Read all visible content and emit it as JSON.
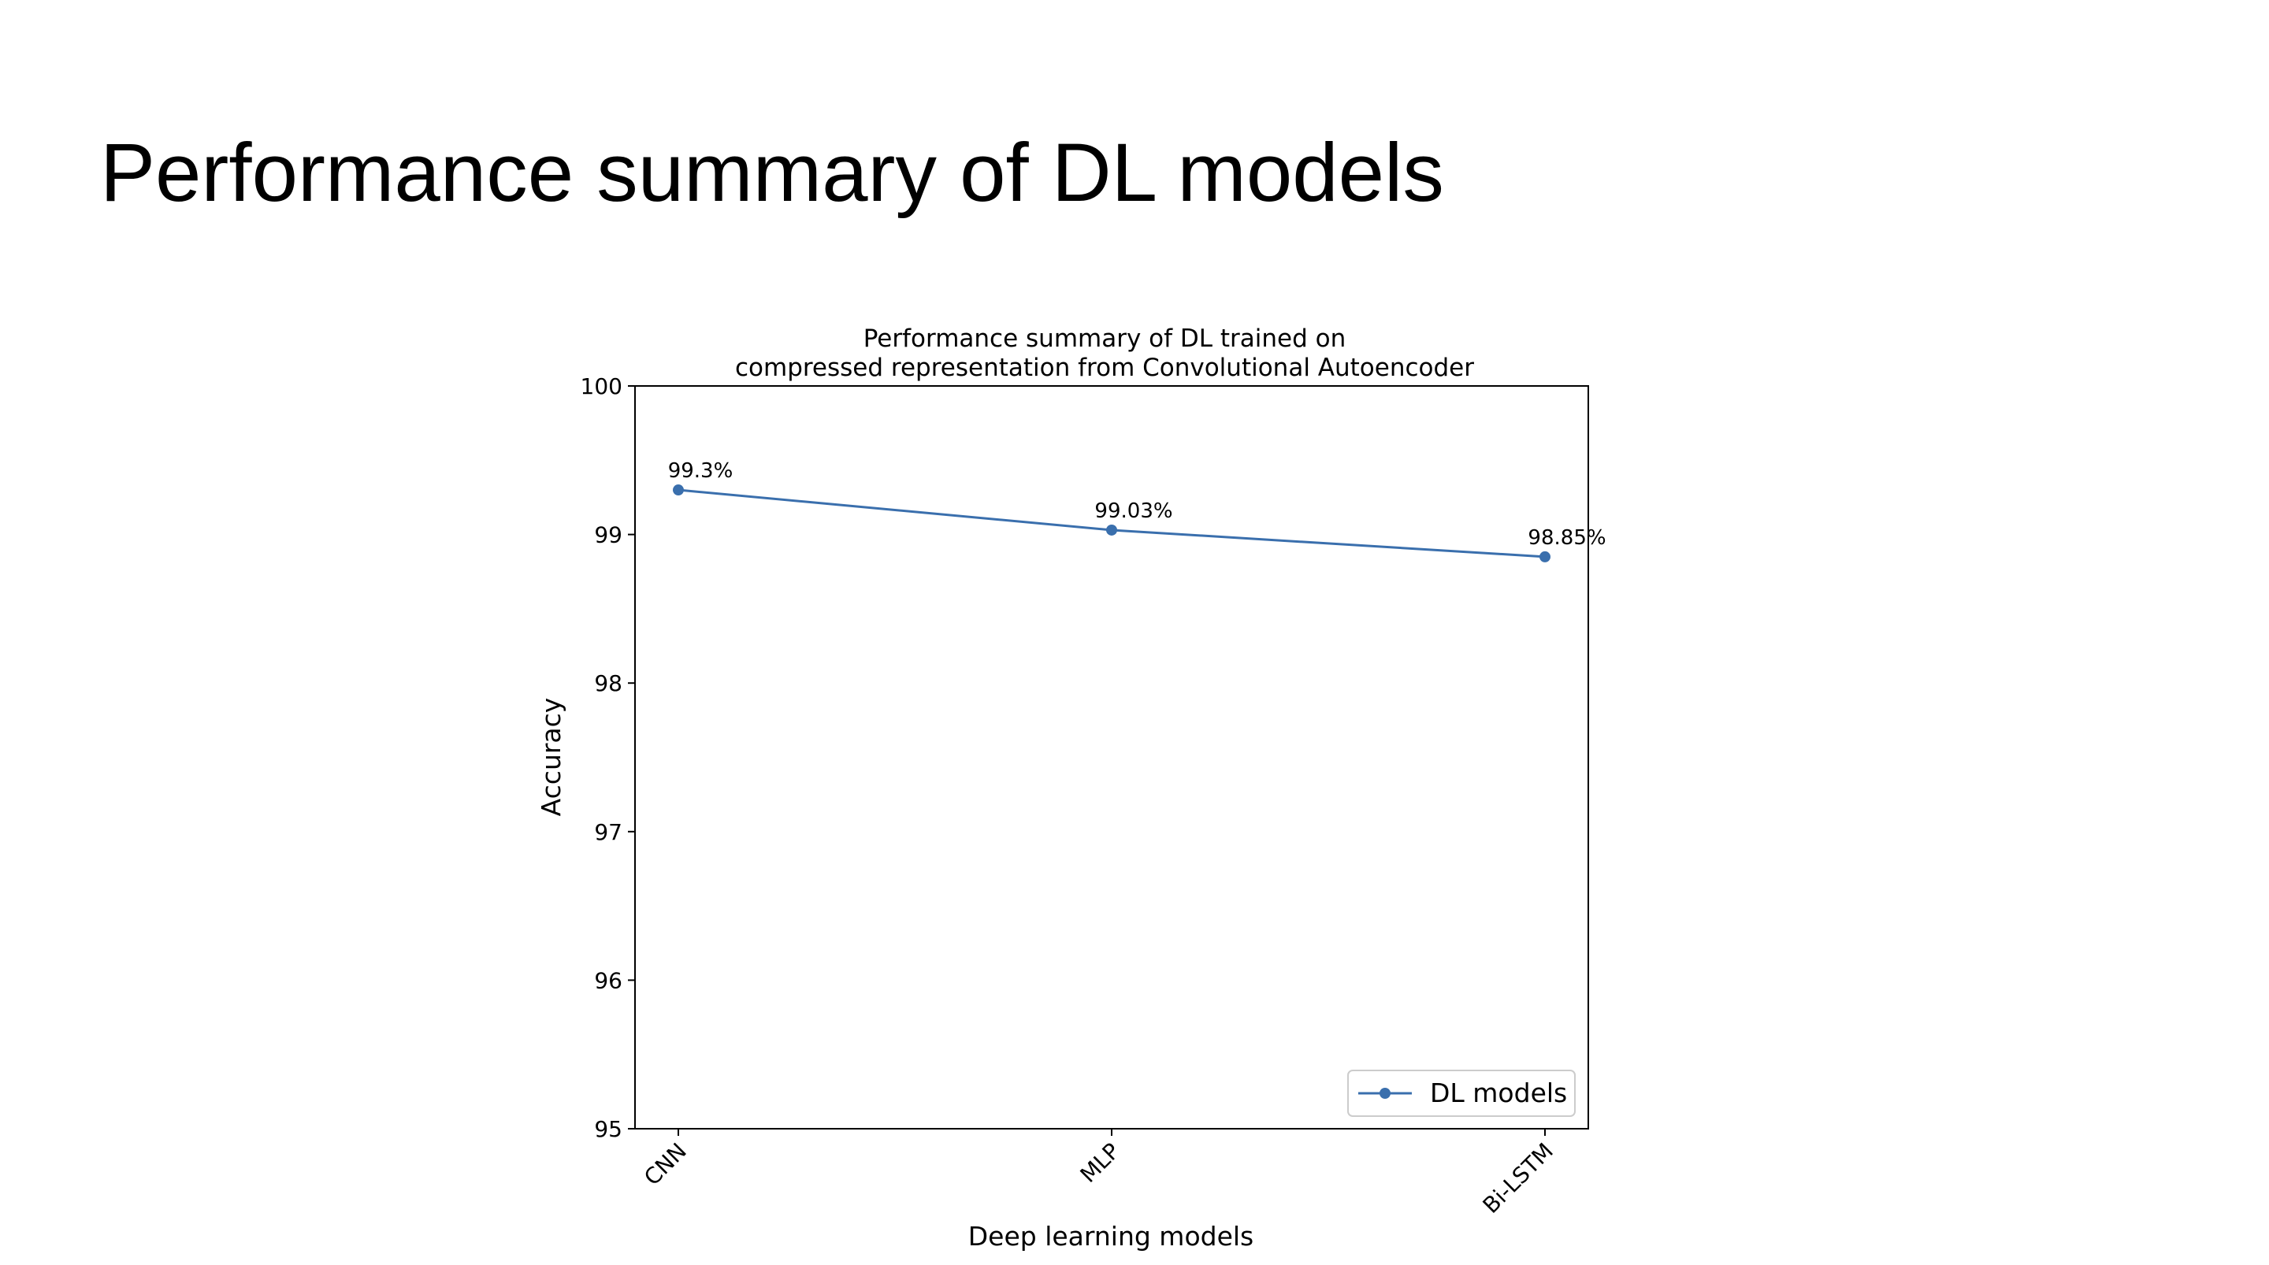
{
  "slide": {
    "title": "Performance summary of DL models"
  },
  "chart_data": {
    "type": "line",
    "title_lines": [
      "Performance summary of DL trained on",
      "compressed representation from Convolutional Autoencoder"
    ],
    "xlabel": "Deep learning models",
    "ylabel": "Accuracy",
    "categories": [
      "CNN",
      "MLP",
      "Bi-LSTM"
    ],
    "series": [
      {
        "name": "DL models",
        "values": [
          99.3,
          99.03,
          98.85
        ],
        "labels": [
          "99.3%",
          "99.03%",
          "98.85%"
        ],
        "color": "#3a6fad",
        "marker": "circle"
      }
    ],
    "ylim": [
      95,
      100
    ],
    "yticks": [
      95,
      96,
      97,
      98,
      99,
      100
    ],
    "grid": false,
    "legend_position": "lower-right"
  }
}
